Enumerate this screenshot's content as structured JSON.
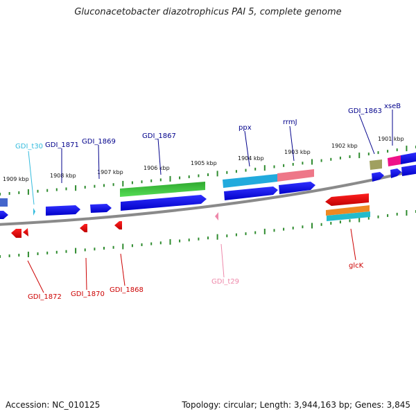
{
  "title": "Gluconacetobacter diazotrophicus PAI 5, complete genome",
  "footer": {
    "accession": "Accession: NC_010125",
    "summary": "Topology: circular; Length: 3,944,163 bp; Genes: 3,845"
  },
  "colors": {
    "backbone": "#888888",
    "ticks": "#2e8b2e",
    "forward_label": "#00008b",
    "reverse_label": "#cc0000",
    "trna_forward": "#33bbdd",
    "trna_reverse": "#ee88aa"
  },
  "kbp_labels": [
    "1909 kbp",
    "1908 kbp",
    "1907 kbp",
    "1906 kbp",
    "1905 kbp",
    "1904 kbp",
    "1903 kbp",
    "1902 kbp",
    "1901 kbp"
  ],
  "forward_labels": [
    "GDI_t30",
    "GDI_1871",
    "GDI_1869",
    "GDI_1867",
    "ppx",
    "rrmJ",
    "GDI_1863",
    "xseB"
  ],
  "reverse_labels": [
    "GDI_1872",
    "GDI_1870",
    "GDI_1868",
    "GDI_t29",
    "glcK"
  ]
}
